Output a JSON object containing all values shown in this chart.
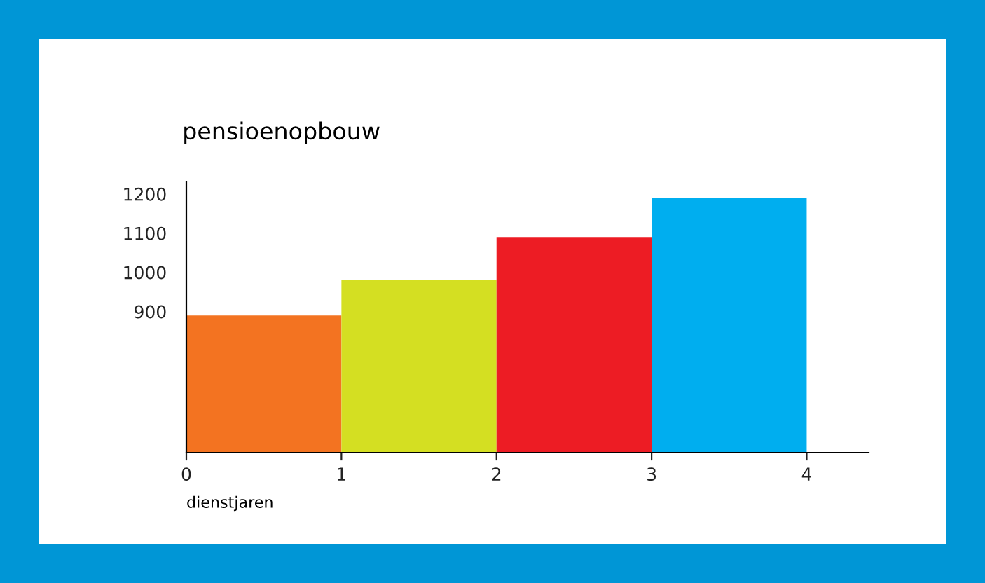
{
  "chart_data": {
    "type": "histogram",
    "title": "pensioenopbouw",
    "xlabel": "dienstjaren",
    "bins": [
      0,
      1,
      2,
      3,
      4
    ],
    "values": [
      890,
      980,
      1090,
      1190
    ],
    "colors": [
      "#f37321",
      "#d4df22",
      "#ed1c24",
      "#00aeef"
    ],
    "xlim": [
      0,
      4.4
    ],
    "xticks": [
      0,
      1,
      2,
      3,
      4
    ],
    "ylim": [
      540,
      1230
    ],
    "yticks": [
      900,
      1000,
      1100,
      1200
    ],
    "grid": false
  }
}
